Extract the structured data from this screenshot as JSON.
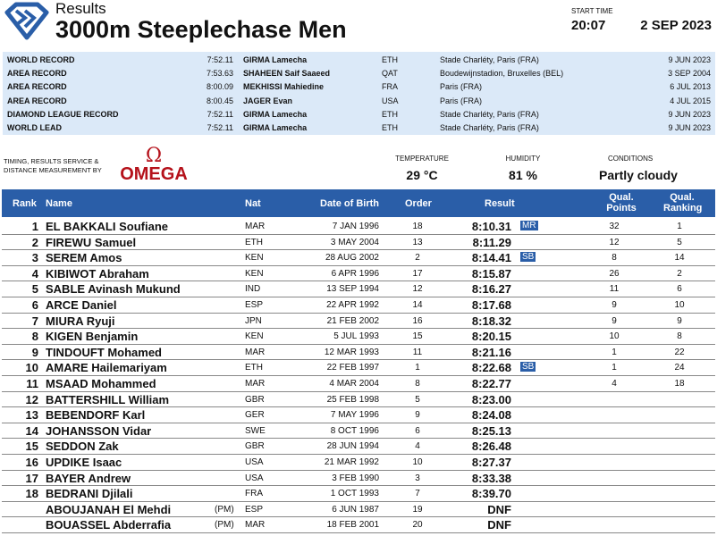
{
  "header": {
    "subtitle": "Results",
    "title": "3000m Steeplechase Men",
    "start_time_label": "START TIME",
    "start_time": "20:07",
    "date": "2 SEP 2023"
  },
  "records": [
    {
      "label": "WORLD RECORD",
      "time": "7:52.11",
      "name": "GIRMA Lamecha",
      "nat": "ETH",
      "venue": "Stade Charléty, Paris (FRA)",
      "date": "9 JUN 2023"
    },
    {
      "label": "AREA RECORD",
      "time": "7:53.63",
      "name": "SHAHEEN Saif Saaeed",
      "nat": "QAT",
      "venue": "Boudewijnstadion, Bruxelles (BEL)",
      "date": "3 SEP 2004"
    },
    {
      "label": "AREA RECORD",
      "time": "8:00.09",
      "name": "MEKHISSI Mahiedine",
      "nat": "FRA",
      "venue": "Paris (FRA)",
      "date": "6 JUL 2013"
    },
    {
      "label": "AREA RECORD",
      "time": "8:00.45",
      "name": "JAGER Evan",
      "nat": "USA",
      "venue": "Paris (FRA)",
      "date": "4 JUL 2015"
    },
    {
      "label": "DIAMOND LEAGUE RECORD",
      "time": "7:52.11",
      "name": "GIRMA Lamecha",
      "nat": "ETH",
      "venue": "Stade Charléty, Paris (FRA)",
      "date": "9 JUN 2023"
    },
    {
      "label": "WORLD LEAD",
      "time": "7:52.11",
      "name": "GIRMA Lamecha",
      "nat": "ETH",
      "venue": "Stade Charléty, Paris (FRA)",
      "date": "9 JUN 2023"
    }
  ],
  "timing": {
    "text": "TIMING, RESULTS SERVICE & DISTANCE MEASUREMENT BY",
    "brand": "OMEGA",
    "brand_symbol": "Ω"
  },
  "conditions": {
    "temperature_label": "TEMPERATURE",
    "temperature": "29 °C",
    "humidity_label": "HUMIDITY",
    "humidity": "81 %",
    "conditions_label": "CONDITIONS",
    "conditions": "Partly cloudy"
  },
  "columns": {
    "rank": "Rank",
    "name": "Name",
    "nat": "Nat",
    "dob": "Date of Birth",
    "order": "Order",
    "result": "Result",
    "qual_points": "Qual. Points",
    "qual_ranking": "Qual. Ranking"
  },
  "results": [
    {
      "rank": "1",
      "name": "EL BAKKALI Soufiane",
      "pm": "",
      "nat": "MAR",
      "dob": "7 JAN 1996",
      "order": "18",
      "result": "8:10.31",
      "badge": "MR",
      "qp": "32",
      "qr": "1"
    },
    {
      "rank": "2",
      "name": "FIREWU Samuel",
      "pm": "",
      "nat": "ETH",
      "dob": "3 MAY 2004",
      "order": "13",
      "result": "8:11.29",
      "badge": "",
      "qp": "12",
      "qr": "5"
    },
    {
      "rank": "3",
      "name": "SEREM Amos",
      "pm": "",
      "nat": "KEN",
      "dob": "28 AUG 2002",
      "order": "2",
      "result": "8:14.41",
      "badge": "SB",
      "qp": "8",
      "qr": "14"
    },
    {
      "rank": "4",
      "name": "KIBIWOT Abraham",
      "pm": "",
      "nat": "KEN",
      "dob": "6 APR 1996",
      "order": "17",
      "result": "8:15.87",
      "badge": "",
      "qp": "26",
      "qr": "2"
    },
    {
      "rank": "5",
      "name": "SABLE Avinash Mukund",
      "pm": "",
      "nat": "IND",
      "dob": "13 SEP 1994",
      "order": "12",
      "result": "8:16.27",
      "badge": "",
      "qp": "11",
      "qr": "6"
    },
    {
      "rank": "6",
      "name": "ARCE Daniel",
      "pm": "",
      "nat": "ESP",
      "dob": "22 APR 1992",
      "order": "14",
      "result": "8:17.68",
      "badge": "",
      "qp": "9",
      "qr": "10"
    },
    {
      "rank": "7",
      "name": "MIURA Ryuji",
      "pm": "",
      "nat": "JPN",
      "dob": "21 FEB 2002",
      "order": "16",
      "result": "8:18.32",
      "badge": "",
      "qp": "9",
      "qr": "9"
    },
    {
      "rank": "8",
      "name": "KIGEN Benjamin",
      "pm": "",
      "nat": "KEN",
      "dob": "5 JUL 1993",
      "order": "15",
      "result": "8:20.15",
      "badge": "",
      "qp": "10",
      "qr": "8"
    },
    {
      "rank": "9",
      "name": "TINDOUFT Mohamed",
      "pm": "",
      "nat": "MAR",
      "dob": "12 MAR 1993",
      "order": "11",
      "result": "8:21.16",
      "badge": "",
      "qp": "1",
      "qr": "22"
    },
    {
      "rank": "10",
      "name": "AMARE Hailemariyam",
      "pm": "",
      "nat": "ETH",
      "dob": "22 FEB 1997",
      "order": "1",
      "result": "8:22.68",
      "badge": "SB",
      "qp": "1",
      "qr": "24"
    },
    {
      "rank": "11",
      "name": "MSAAD Mohammed",
      "pm": "",
      "nat": "MAR",
      "dob": "4 MAR 2004",
      "order": "8",
      "result": "8:22.77",
      "badge": "",
      "qp": "4",
      "qr": "18"
    },
    {
      "rank": "12",
      "name": "BATTERSHILL William",
      "pm": "",
      "nat": "GBR",
      "dob": "25 FEB 1998",
      "order": "5",
      "result": "8:23.00",
      "badge": "",
      "qp": "",
      "qr": ""
    },
    {
      "rank": "13",
      "name": "BEBENDORF Karl",
      "pm": "",
      "nat": "GER",
      "dob": "7 MAY 1996",
      "order": "9",
      "result": "8:24.08",
      "badge": "",
      "qp": "",
      "qr": ""
    },
    {
      "rank": "14",
      "name": "JOHANSSON Vidar",
      "pm": "",
      "nat": "SWE",
      "dob": "8 OCT 1996",
      "order": "6",
      "result": "8:25.13",
      "badge": "",
      "qp": "",
      "qr": ""
    },
    {
      "rank": "15",
      "name": "SEDDON Zak",
      "pm": "",
      "nat": "GBR",
      "dob": "28 JUN 1994",
      "order": "4",
      "result": "8:26.48",
      "badge": "",
      "qp": "",
      "qr": ""
    },
    {
      "rank": "16",
      "name": "UPDIKE Isaac",
      "pm": "",
      "nat": "USA",
      "dob": "21 MAR 1992",
      "order": "10",
      "result": "8:27.37",
      "badge": "",
      "qp": "",
      "qr": ""
    },
    {
      "rank": "17",
      "name": "BAYER Andrew",
      "pm": "",
      "nat": "USA",
      "dob": "3 FEB 1990",
      "order": "3",
      "result": "8:33.38",
      "badge": "",
      "qp": "",
      "qr": ""
    },
    {
      "rank": "18",
      "name": "BEDRANI Djilali",
      "pm": "",
      "nat": "FRA",
      "dob": "1 OCT 1993",
      "order": "7",
      "result": "8:39.70",
      "badge": "",
      "qp": "",
      "qr": ""
    },
    {
      "rank": "",
      "name": "ABOUJANAH El Mehdi",
      "pm": "(PM)",
      "nat": "ESP",
      "dob": "6 JUN 1987",
      "order": "19",
      "result": "DNF",
      "badge": "",
      "qp": "",
      "qr": ""
    },
    {
      "rank": "",
      "name": "BOUASSEL Abderrafia",
      "pm": "(PM)",
      "nat": "MAR",
      "dob": "18 FEB 2001",
      "order": "20",
      "result": "DNF",
      "badge": "",
      "qp": "",
      "qr": ""
    }
  ],
  "colors": {
    "accent": "#2a5ea8",
    "record_bg": "#dbe9f8",
    "omega_red": "#b5121b"
  }
}
